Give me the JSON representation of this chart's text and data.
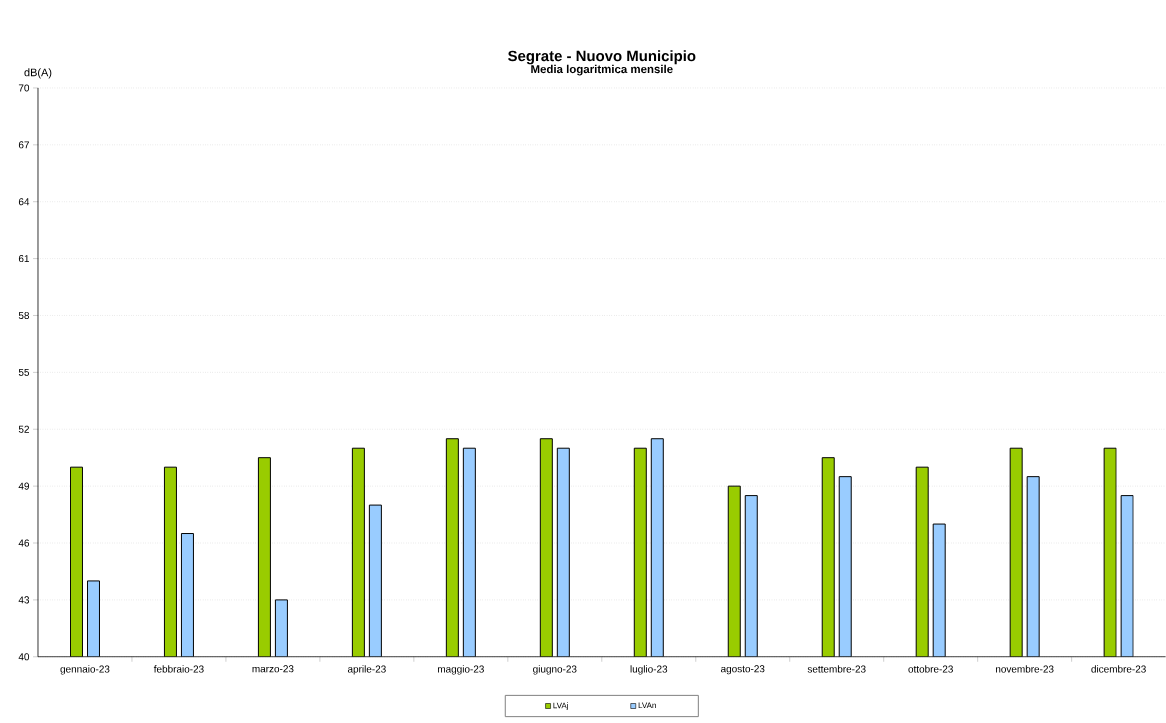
{
  "chart_data": {
    "type": "bar",
    "title": "Segrate - Nuovo Municipio",
    "subtitle": "Media logaritmica mensile",
    "ylabel": "dB(A)",
    "categories": [
      "gennaio-23",
      "febbraio-23",
      "marzo-23",
      "aprile-23",
      "maggio-23",
      "giugno-23",
      "luglio-23",
      "agosto-23",
      "settembre-23",
      "ottobre-23",
      "novembre-23",
      "dicembre-23"
    ],
    "series": [
      {
        "name": "LVAj",
        "color": "#99cc00",
        "values": [
          50,
          50,
          50.5,
          51,
          51.5,
          51.5,
          51,
          49,
          50.5,
          50,
          51,
          51
        ]
      },
      {
        "name": "LVAn",
        "color": "#99ccff",
        "values": [
          44,
          46.5,
          43,
          48,
          51,
          51,
          51.5,
          48.5,
          49.5,
          47,
          49.5,
          48.5
        ]
      }
    ],
    "ylim": [
      40,
      70
    ],
    "yticks": [
      40,
      43,
      46,
      49,
      52,
      55,
      58,
      61,
      64,
      67,
      70
    ],
    "grid": "y",
    "legend": "bottom"
  }
}
